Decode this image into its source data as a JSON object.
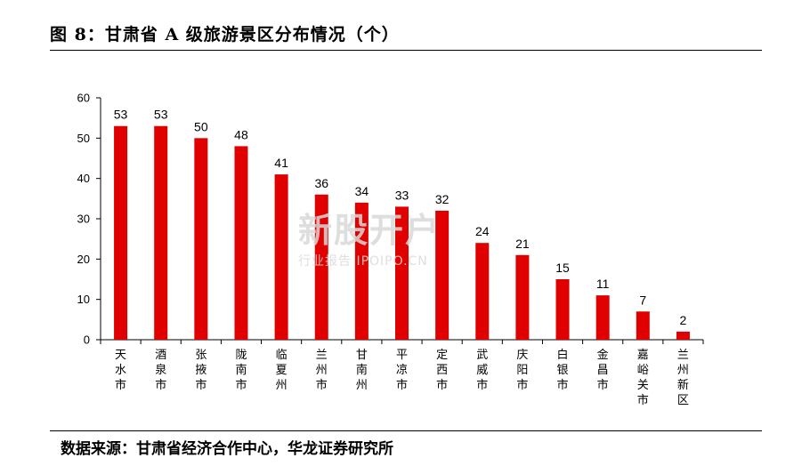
{
  "figure": {
    "title": "图 8：甘肃省 A 级旅游景区分布情况（个）",
    "source": "数据来源：甘肃省经济合作中心，华龙证券研究所"
  },
  "watermark": {
    "main": "新股开户",
    "sub": "行业报告 IPOIPO.CN"
  },
  "colors": {
    "bar": "#e00000",
    "axis": "#000000"
  },
  "chart_data": {
    "type": "bar",
    "title": "",
    "xlabel": "",
    "ylabel": "",
    "ylim": [
      0,
      60
    ],
    "yticks": [
      0,
      10,
      20,
      30,
      40,
      50,
      60
    ],
    "grid": false,
    "legend": "none",
    "categories": [
      "天水市",
      "酒泉市",
      "张掖市",
      "陇南市",
      "临夏州",
      "兰州市",
      "甘南州",
      "平凉市",
      "定西市",
      "武威市",
      "庆阳市",
      "白银市",
      "金昌市",
      "嘉峪关市",
      "兰州新区"
    ],
    "values": [
      53,
      53,
      50,
      48,
      41,
      36,
      34,
      33,
      32,
      24,
      21,
      15,
      11,
      7,
      2
    ]
  }
}
